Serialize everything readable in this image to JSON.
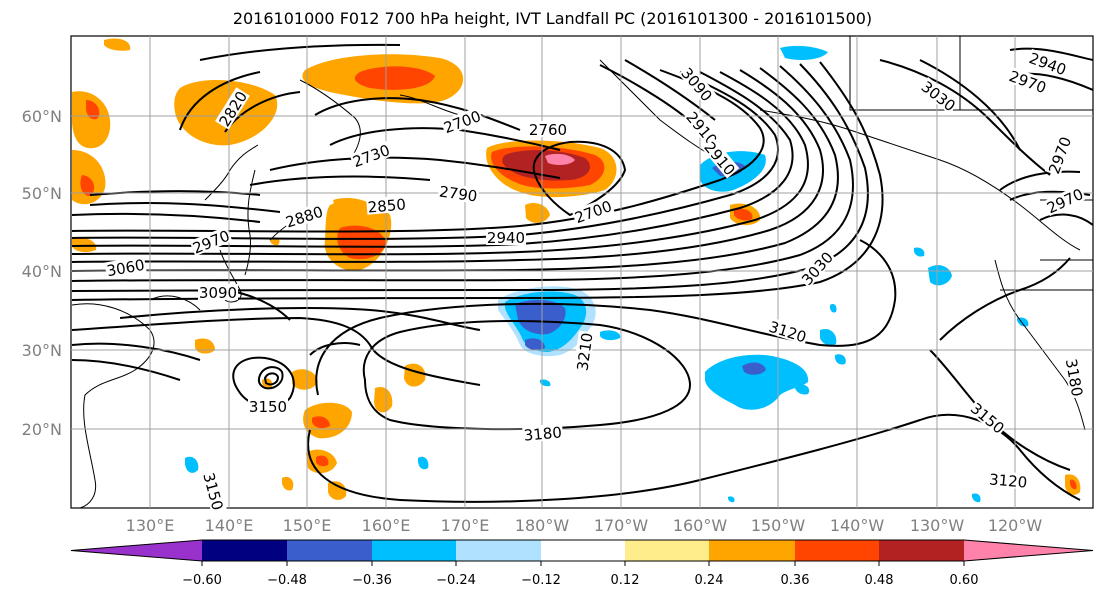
{
  "title": "2016101000 F012 700 hPa height, IVT Landfall PC (2016101300 - 2016101500)",
  "lat_labels": [
    "60°N",
    "50°N",
    "40°N",
    "30°N",
    "20°N"
  ],
  "lon_labels": [
    "130°E",
    "140°E",
    "150°E",
    "160°E",
    "170°E",
    "180°W",
    "170°W",
    "160°W",
    "150°W",
    "140°W",
    "130°W",
    "120°W"
  ],
  "contour_labels": [
    "2820",
    "2700",
    "2730",
    "2760",
    "2790",
    "2850",
    "2880",
    "2970",
    "2940",
    "3060",
    "3090",
    "2700",
    "3030",
    "3120",
    "3210",
    "3150",
    "3180",
    "3150",
    "3120",
    "2940",
    "2970",
    "3030",
    "2970",
    "2970",
    "3180",
    "3150",
    "2910",
    "3090",
    "2910"
  ],
  "colorbar": {
    "ticks": [
      "−0.60",
      "−0.48",
      "−0.36",
      "−0.24",
      "−0.12",
      "0.12",
      "0.24",
      "0.36",
      "0.48",
      "0.60"
    ],
    "colors": [
      "#9932cc",
      "#000080",
      "#3a5fcd",
      "#00bfff",
      "#b0e2ff",
      "#ffffff",
      "#ffec8b",
      "#ffa500",
      "#ff4500",
      "#b22222",
      "#ff82ab"
    ]
  },
  "colors": {
    "gridline": "#a0a0a0",
    "contour": "#000000",
    "coastline": "#000000"
  }
}
